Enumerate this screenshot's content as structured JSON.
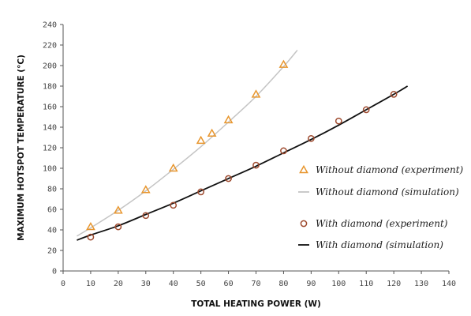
{
  "chart_data": {
    "type": "scatter",
    "title": "",
    "xlabel": "TOTAL HEATING POWER (W)",
    "ylabel": "MAXIMUM HOTSPOT TEMPERATURE (°C)",
    "xlim": [
      0,
      140
    ],
    "ylim": [
      0,
      240
    ],
    "xticks": [
      0,
      10,
      20,
      30,
      40,
      50,
      60,
      70,
      80,
      90,
      100,
      110,
      120,
      130,
      140
    ],
    "yticks": [
      0,
      20,
      40,
      60,
      80,
      100,
      120,
      140,
      160,
      180,
      200,
      220,
      240
    ],
    "grid": false,
    "legend_position": "right",
    "series": [
      {
        "name": "Without diamond (experiment)",
        "kind": "scatter",
        "marker": "triangle",
        "color": "#e8962e",
        "x": [
          10,
          20,
          30,
          40,
          50,
          54,
          60,
          70,
          80
        ],
        "y": [
          43,
          59,
          79,
          100,
          127,
          134,
          147,
          172,
          201
        ]
      },
      {
        "name": "Without diamond (simulation)",
        "kind": "line",
        "color": "#c4c4c4",
        "x": [
          5,
          10,
          20,
          30,
          40,
          50,
          60,
          70,
          80,
          85
        ],
        "y": [
          34,
          42,
          59,
          78,
          99,
          121,
          145,
          170,
          199,
          215
        ]
      },
      {
        "name": "With diamond (experiment)",
        "kind": "scatter",
        "marker": "circle",
        "color": "#9e4a2e",
        "x": [
          10,
          20,
          30,
          40,
          50,
          60,
          70,
          80,
          90,
          100,
          110,
          120
        ],
        "y": [
          33,
          43,
          54,
          64,
          77,
          90,
          103,
          117,
          129,
          146,
          157,
          172
        ]
      },
      {
        "name": "With diamond (simulation)",
        "kind": "line",
        "color": "#111111",
        "x": [
          5,
          10,
          20,
          30,
          40,
          50,
          60,
          70,
          80,
          90,
          100,
          110,
          120,
          125
        ],
        "y": [
          30,
          35,
          44,
          55,
          66,
          78,
          90,
          102,
          115,
          128,
          142,
          157,
          172,
          180
        ]
      }
    ]
  }
}
